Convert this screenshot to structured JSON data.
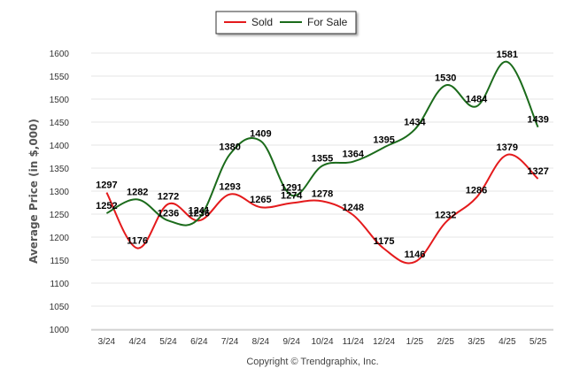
{
  "chart_data": {
    "type": "line",
    "ylabel": "Average Price (in $,000)",
    "ylim": [
      1000,
      1600
    ],
    "ytick_step": 50,
    "grid": "horizontal",
    "legend_position": "top-center",
    "categories": [
      "3/24",
      "4/24",
      "5/24",
      "6/24",
      "7/24",
      "8/24",
      "9/24",
      "10/24",
      "11/24",
      "12/24",
      "1/25",
      "2/25",
      "3/25",
      "4/25",
      "5/25"
    ],
    "series": [
      {
        "name": "Sold",
        "color": "#e41a1c",
        "values": [
          1297,
          1176,
          1272,
          1236,
          1293,
          1265,
          1274,
          1278,
          1248,
          1175,
          1146,
          1232,
          1286,
          1379,
          1327
        ]
      },
      {
        "name": "For Sale",
        "color": "#1b6b1b",
        "values": [
          1252,
          1282,
          1236,
          1241,
          1380,
          1409,
          1291,
          1355,
          1364,
          1395,
          1434,
          1530,
          1484,
          1581,
          1439
        ]
      }
    ],
    "footer": "Copyright © Trendgraphix, Inc."
  }
}
